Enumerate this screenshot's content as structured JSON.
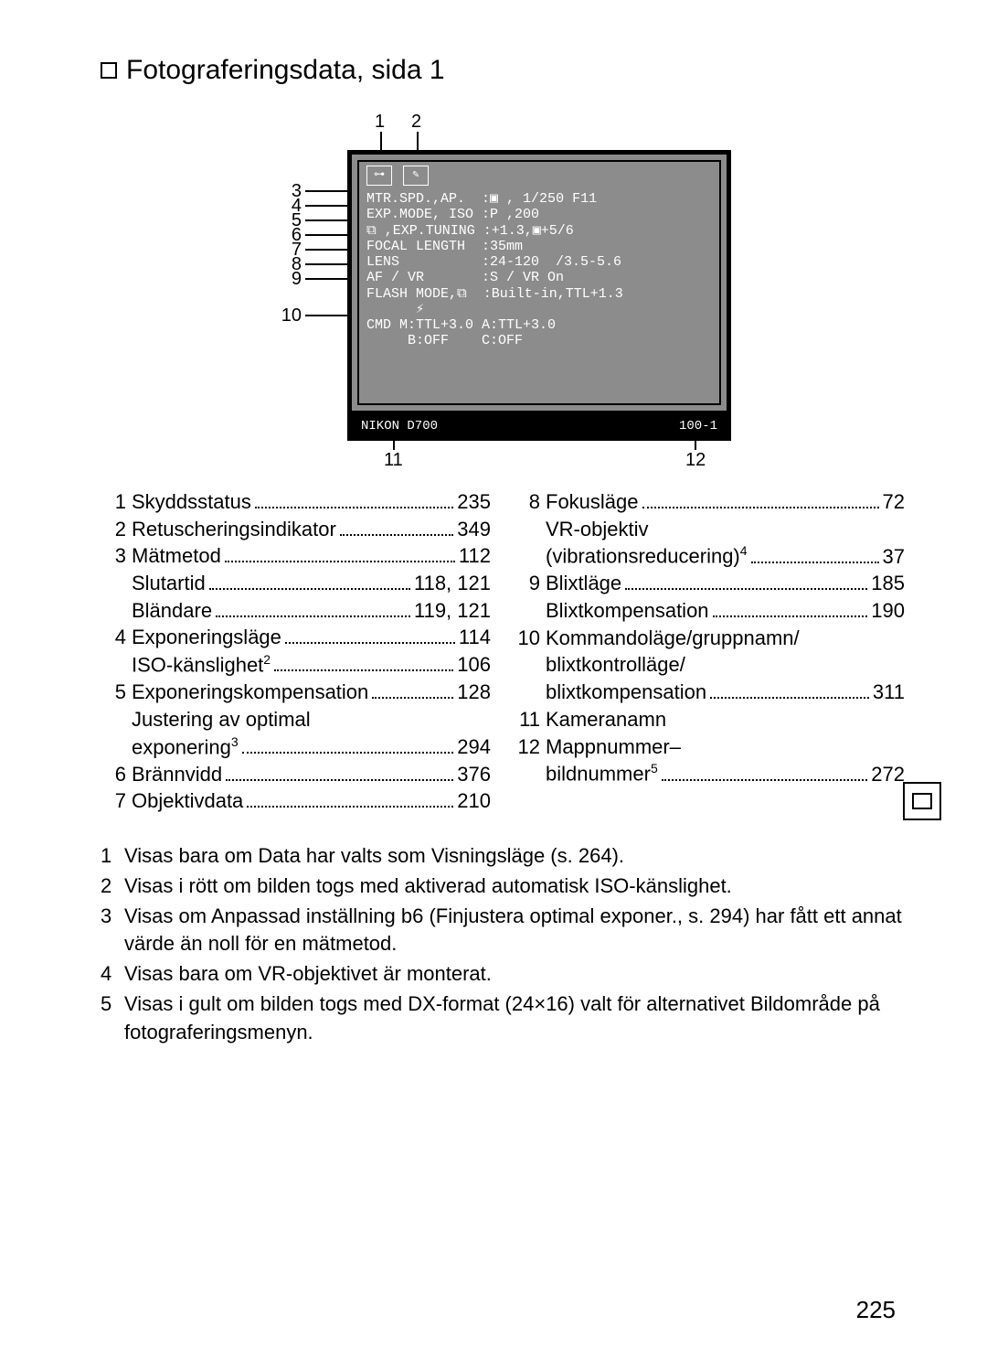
{
  "header": {
    "title": "Fotograferingsdata, sida 1"
  },
  "diagram": {
    "screen_lines": {
      "l1": "MTR.SPD.,AP.  :▣ , 1/250 F11",
      "l2": "EXP.MODE, ISO :P ,200",
      "l3": "⧉ ,EXP.TUNING :+1.3,▣+5/6",
      "l4": "FOCAL LENGTH  :35mm",
      "l5": "LENS          :24-120  /3.5-5.6",
      "l6": "AF / VR       :S / VR On",
      "l7": "FLASH MODE,⧉  :Built-in,TTL+1.3",
      "l8": "      ⚡",
      "l9": "CMD M:TTL+3.0 A:TTL+3.0",
      "l10": "     B:OFF    C:OFF"
    },
    "bottom_left": "NIKON D700",
    "bottom_right": "100-1",
    "callouts": {
      "c1": "1",
      "c2": "2",
      "c3": "3",
      "c4": "4",
      "c5": "5",
      "c6": "6",
      "c7": "7",
      "c8": "8",
      "c9": "9",
      "c10": "10",
      "c11": "11",
      "c12": "12"
    }
  },
  "refs": {
    "col1": [
      {
        "num": "1",
        "label": "Skyddsstatus",
        "page": "235"
      },
      {
        "num": "2",
        "label": "Retuscheringsindikator",
        "page": "349"
      },
      {
        "num": "3",
        "label": "Mätmetod",
        "page": "112"
      },
      {
        "num": "",
        "label": "Slutartid",
        "page": "118, 121"
      },
      {
        "num": "",
        "label": "Bländare",
        "page": "119, 121"
      },
      {
        "num": "4",
        "label": "Exponeringsläge",
        "page": "114"
      },
      {
        "num": "",
        "label": "ISO-känslighet",
        "sup": "2",
        "page": "106"
      },
      {
        "num": "5",
        "label": "Exponeringskompensation",
        "page": "128"
      },
      {
        "num": "",
        "label": "Justering av optimal",
        "page": "",
        "nodots": true
      },
      {
        "num": "",
        "label": "exponering",
        "sup": "3",
        "page": "294"
      },
      {
        "num": "6",
        "label": "Brännvidd",
        "page": "376"
      },
      {
        "num": "7",
        "label": "Objektivdata",
        "page": "210"
      }
    ],
    "col2": [
      {
        "num": "8",
        "label": "Fokusläge",
        "page": "72"
      },
      {
        "num": "",
        "label": "VR-objektiv",
        "page": "",
        "nodots": true
      },
      {
        "num": "",
        "label": "(vibrationsreducering)",
        "sup": "4",
        "page": "37"
      },
      {
        "num": "9",
        "label": "Blixtläge",
        "page": "185"
      },
      {
        "num": "",
        "label": "Blixtkompensation",
        "page": "190"
      },
      {
        "num": "10",
        "label": "Kommandoläge/gruppnamn/",
        "page": "",
        "nodots": true
      },
      {
        "num": "",
        "label": "blixtkontrolläge/",
        "page": "",
        "nodots": true
      },
      {
        "num": "",
        "label": "blixtkompensation",
        "page": "311"
      },
      {
        "num": "11",
        "label": "Kameranamn",
        "page": "",
        "nodots": true
      },
      {
        "num": "12",
        "label": "Mappnummer–",
        "page": "",
        "nodots": true
      },
      {
        "num": "",
        "label": "bildnummer",
        "sup": "5",
        "page": "272"
      }
    ]
  },
  "footnotes": [
    {
      "num": "1",
      "text": "Visas bara om Data har valts som Visningsläge (s. 264)."
    },
    {
      "num": "2",
      "text": "Visas i rött om bilden togs med aktiverad automatisk ISO-känslighet."
    },
    {
      "num": "3",
      "text": "Visas om Anpassad inställning b6 (Finjustera optimal exponer., s. 294) har fått ett annat värde än noll för en mätmetod."
    },
    {
      "num": "4",
      "text": "Visas bara om VR-objektivet är monterat."
    },
    {
      "num": "5",
      "text": "Visas i gult om bilden togs med DX-format (24×16) valt för alternativet Bildområde på fotograferingsmenyn."
    }
  ],
  "page_number": "225"
}
